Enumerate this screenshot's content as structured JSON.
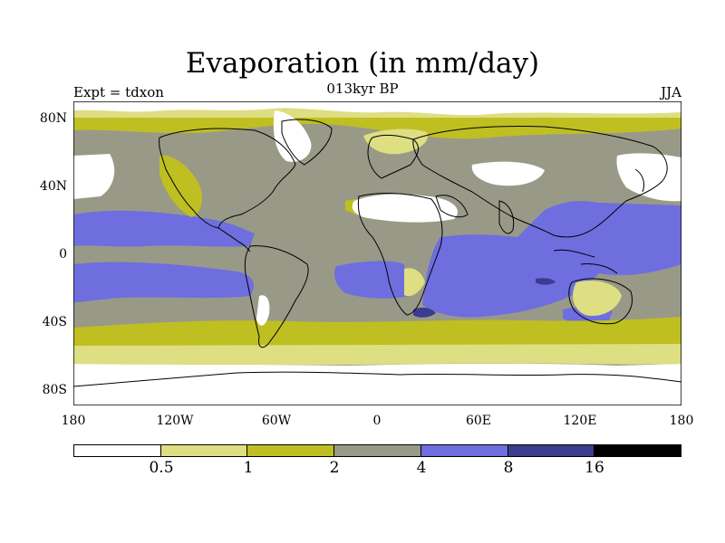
{
  "title": "Evaporation (in mm/day)",
  "subtitle": "013kyr BP",
  "left_label": "Expt = tdxon",
  "right_label": "JJA",
  "y_ticks": [
    "80N",
    "40N",
    "0",
    "40S",
    "80S"
  ],
  "x_ticks": [
    "180",
    "120W",
    "60W",
    "0",
    "60E",
    "120E",
    "180"
  ],
  "colorbar": {
    "labels": [
      "0.5",
      "1",
      "2",
      "4",
      "8",
      "16"
    ],
    "colors": [
      "#ffffff",
      "#dede82",
      "#bfbf22",
      "#999988",
      "#6e6edf",
      "#3c3c8f",
      "#000000"
    ]
  },
  "colors": {
    "coastline": "#000000",
    "zone_0": "#ffffff",
    "zone_1": "#dede82",
    "zone_2": "#bfbf22",
    "zone_3": "#999988",
    "zone_4": "#6e6edf",
    "zone_5": "#3c3c8f"
  }
}
